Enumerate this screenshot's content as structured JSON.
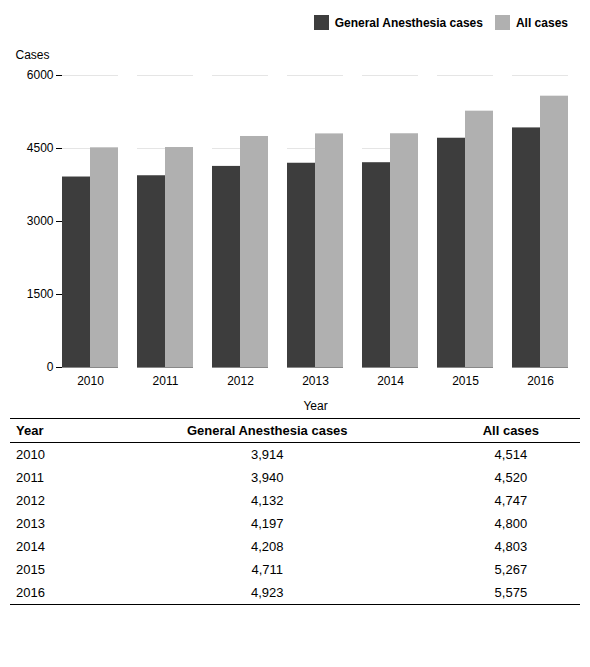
{
  "chart_data": [
    {
      "type": "bar",
      "categories": [
        "2010",
        "2011",
        "2012",
        "2013",
        "2014",
        "2015",
        "2016"
      ],
      "series": [
        {
          "name": "General Anesthesia cases",
          "color": "#3d3d3d",
          "values": [
            3914,
            3940,
            4132,
            4197,
            4208,
            4711,
            4923
          ]
        },
        {
          "name": "All cases",
          "color": "#b0b0b0",
          "values": [
            4514,
            4520,
            4747,
            4800,
            4803,
            5267,
            5575
          ]
        }
      ],
      "xlabel": "Year",
      "ylabel": "Cases",
      "ylim": [
        0,
        6000
      ],
      "yticks": [
        0,
        1500,
        3000,
        4500,
        6000
      ],
      "grid": true,
      "legend": "upper right"
    },
    {
      "type": "table",
      "columns": [
        "Year",
        "General Anesthesia cases",
        "All cases"
      ],
      "rows": [
        [
          "2010",
          "3,914",
          "4,514"
        ],
        [
          "2011",
          "3,940",
          "4,520"
        ],
        [
          "2012",
          "4,132",
          "4,747"
        ],
        [
          "2013",
          "4,197",
          "4,800"
        ],
        [
          "2014",
          "4,208",
          "4,803"
        ],
        [
          "2015",
          "4,711",
          "5,267"
        ],
        [
          "2016",
          "4,923",
          "5,575"
        ]
      ]
    }
  ]
}
